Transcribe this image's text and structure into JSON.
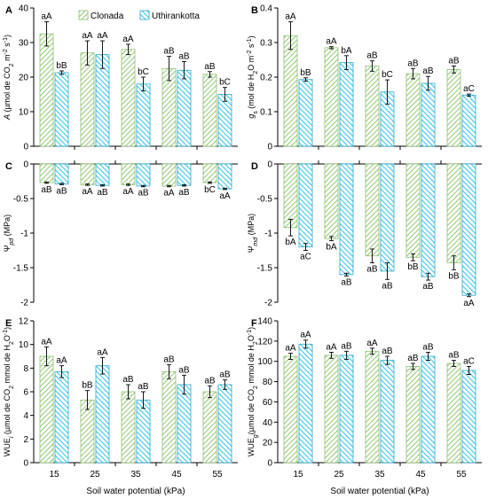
{
  "chart_data": [
    {
      "panel": "A",
      "type": "bar",
      "categories": [
        "15",
        "25",
        "35",
        "45",
        "55"
      ],
      "ylabel": "A (µmol de CO₂ m⁻² s⁻¹)",
      "xlabel": "",
      "ylim": [
        0,
        40
      ],
      "yticks": [
        0,
        10,
        20,
        30,
        40
      ],
      "series": [
        {
          "name": "Clonada",
          "values": [
            32.5,
            27,
            28,
            22.5,
            20.8
          ],
          "errors": [
            3.5,
            3.5,
            1.5,
            3.5,
            0.8
          ],
          "labels": [
            "aA",
            "aA",
            "aA",
            "aB",
            "aB"
          ]
        },
        {
          "name": "Uthirankotta",
          "values": [
            21.3,
            26.5,
            18,
            22,
            15
          ],
          "errors": [
            0.5,
            4,
            2,
            2.5,
            2
          ],
          "labels": [
            "bB",
            "aA",
            "bC",
            "aB",
            "bC"
          ]
        }
      ]
    },
    {
      "panel": "B",
      "type": "bar",
      "categories": [
        "15",
        "25",
        "35",
        "45",
        "55"
      ],
      "ylabel": "gs (mol de H₂O m⁻² s⁻¹)",
      "xlabel": "",
      "ylim": [
        0,
        0.4
      ],
      "yticks": [
        0,
        0.1,
        0.2,
        0.3,
        0.4
      ],
      "series": [
        {
          "name": "Clonada",
          "values": [
            0.32,
            0.285,
            0.232,
            0.21,
            0.222
          ],
          "errors": [
            0.04,
            0.003,
            0.015,
            0.015,
            0.01
          ],
          "labels": [
            "aA",
            "aA",
            "aB",
            "aB",
            "aB"
          ]
        },
        {
          "name": "Uthirankotta",
          "values": [
            0.193,
            0.242,
            0.157,
            0.182,
            0.148
          ],
          "errors": [
            0.005,
            0.02,
            0.035,
            0.02,
            0.003
          ],
          "labels": [
            "bB",
            "bA",
            "bC",
            "aB",
            "aC"
          ]
        }
      ]
    },
    {
      "panel": "C",
      "type": "bar",
      "categories": [
        "15",
        "25",
        "35",
        "45",
        "55"
      ],
      "ylabel": "Ψpd (MPa)",
      "xlabel": "",
      "ylim": [
        -2,
        0
      ],
      "yticks": [
        0,
        -0.5,
        -1,
        -1.5,
        -2
      ],
      "series": [
        {
          "name": "Clonada",
          "values": [
            -0.27,
            -0.3,
            -0.3,
            -0.32,
            -0.27
          ],
          "errors": [
            0.01,
            0.01,
            0.01,
            0.01,
            0.01
          ],
          "labels": [
            "aB",
            "aA",
            "aA",
            "aA",
            "bC"
          ]
        },
        {
          "name": "Uthirankotta",
          "values": [
            -0.29,
            -0.31,
            -0.32,
            -0.31,
            -0.36
          ],
          "errors": [
            0.01,
            0.01,
            0.01,
            0.01,
            0.01
          ],
          "labels": [
            "aB",
            "aB",
            "aB",
            "aB",
            "aA"
          ]
        }
      ]
    },
    {
      "panel": "D",
      "type": "bar",
      "categories": [
        "15",
        "25",
        "35",
        "45",
        "55"
      ],
      "ylabel": "Ψmd (MPa)",
      "xlabel": "",
      "ylim": [
        -2,
        0
      ],
      "yticks": [
        0,
        -0.5,
        -1,
        -1.5,
        -2
      ],
      "series": [
        {
          "name": "Clonada",
          "values": [
            -0.92,
            -1.08,
            -1.33,
            -1.35,
            -1.43
          ],
          "errors": [
            0.12,
            0.03,
            0.1,
            0.05,
            0.1
          ],
          "labels": [
            "bA",
            "bA",
            "aB",
            "bB",
            "bB"
          ]
        },
        {
          "name": "Uthirankotta",
          "values": [
            -1.2,
            -1.6,
            -1.55,
            -1.63,
            -1.9
          ],
          "errors": [
            0.05,
            0.02,
            0.12,
            0.05,
            0.02
          ],
          "labels": [
            "aC",
            "aB",
            "aB",
            "aB",
            "aA"
          ]
        }
      ]
    },
    {
      "panel": "E",
      "type": "bar",
      "categories": [
        "15",
        "25",
        "35",
        "45",
        "55"
      ],
      "ylabel": "WUEi (µmol de CO₂ mmol de H₂O⁻¹)",
      "xlabel": "Soil water potential (kPa)",
      "ylim": [
        0,
        12
      ],
      "yticks": [
        0,
        2,
        4,
        6,
        8,
        10,
        12
      ],
      "series": [
        {
          "name": "Clonada",
          "values": [
            9,
            5.3,
            6,
            7.7,
            6
          ],
          "errors": [
            0.8,
            0.8,
            0.6,
            0.6,
            0.5
          ],
          "labels": [
            "aA",
            "bB",
            "aB",
            "aB",
            "aB"
          ]
        },
        {
          "name": "Uthirankotta",
          "values": [
            7.7,
            8.2,
            5.3,
            6.6,
            6.6
          ],
          "errors": [
            0.5,
            0.7,
            0.7,
            0.8,
            0.4
          ],
          "labels": [
            "aA",
            "aA",
            "aB",
            "aB",
            "aB"
          ]
        }
      ]
    },
    {
      "panel": "F",
      "type": "bar",
      "categories": [
        "15",
        "25",
        "35",
        "45",
        "55"
      ],
      "ylabel": "WUEg (µmol de CO₂ mmol de H₂O⁻¹)",
      "xlabel": "Soil water potential (kPa)",
      "ylim": [
        0,
        140
      ],
      "yticks": [
        0,
        20,
        40,
        60,
        80,
        100,
        120,
        140
      ],
      "series": [
        {
          "name": "Clonada",
          "values": [
            105,
            106,
            110,
            95,
            98
          ],
          "errors": [
            3,
            3,
            3,
            3,
            3
          ],
          "labels": [
            "aA",
            "aA",
            "aA",
            "aB",
            "aB"
          ]
        },
        {
          "name": "Uthirankotta",
          "values": [
            117,
            106,
            101,
            105,
            91
          ],
          "errors": [
            4,
            4,
            4,
            4,
            4
          ],
          "labels": [
            "aA",
            "aB",
            "aB",
            "aB",
            "aC"
          ]
        }
      ]
    }
  ],
  "legend": [
    "Clonada",
    "Uthirankotta"
  ],
  "colors": {
    "clonada": "#b6dba0",
    "clonada_stroke": "#8fbf74",
    "uthirankotta": "#5fd3ef",
    "uthirankotta_stroke": "#2aa8cc",
    "axis": "#000000"
  }
}
